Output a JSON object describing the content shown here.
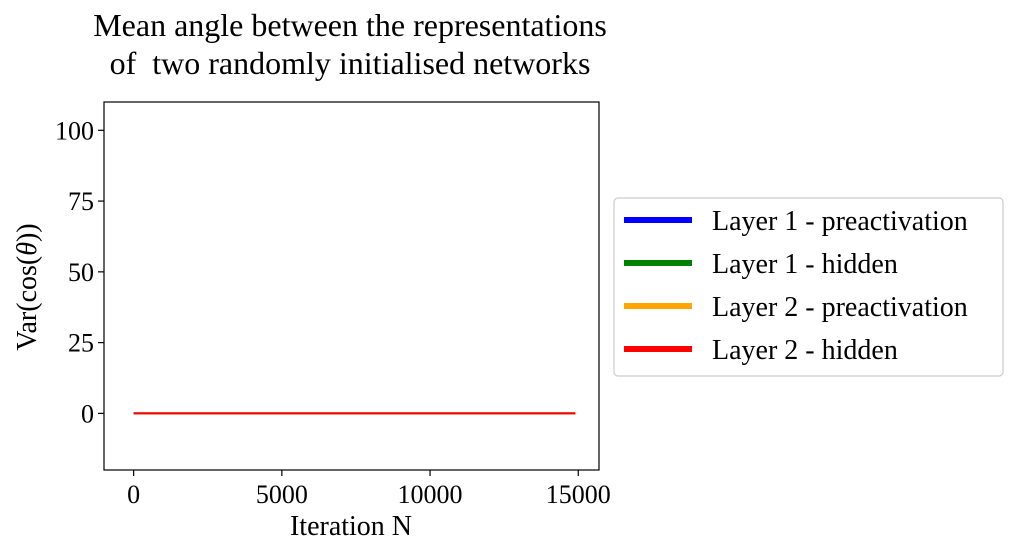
{
  "chart_data": {
    "type": "line",
    "title_lines": [
      "Mean angle between the representations",
      "of  two randomly initialised networks"
    ],
    "xlabel": "Iteration N",
    "ylabel_parts": {
      "prefix": "Var(cos(",
      "symbol": "θ",
      "suffix": "))"
    },
    "xlim": [
      -1000,
      15700
    ],
    "ylim": [
      -20,
      110
    ],
    "xticks": [
      0,
      5000,
      10000,
      15000
    ],
    "yticks": [
      0,
      25,
      50,
      75,
      100
    ],
    "grid": false,
    "legend_position": "right-outside",
    "series": [
      {
        "name": "Layer 1 - preactivation",
        "color": "#0000ff",
        "x": [
          0,
          14900
        ],
        "y": [
          0,
          0
        ]
      },
      {
        "name": "Layer 1 - hidden",
        "color": "#008000",
        "x": [
          0,
          14900
        ],
        "y": [
          0,
          0
        ]
      },
      {
        "name": "Layer 2 - preactivation",
        "color": "#ffa500",
        "x": [
          0,
          14900
        ],
        "y": [
          0,
          0
        ]
      },
      {
        "name": "Layer 2 - hidden",
        "color": "#ff0000",
        "x": [
          0,
          14900
        ],
        "y": [
          0,
          0
        ]
      }
    ]
  }
}
